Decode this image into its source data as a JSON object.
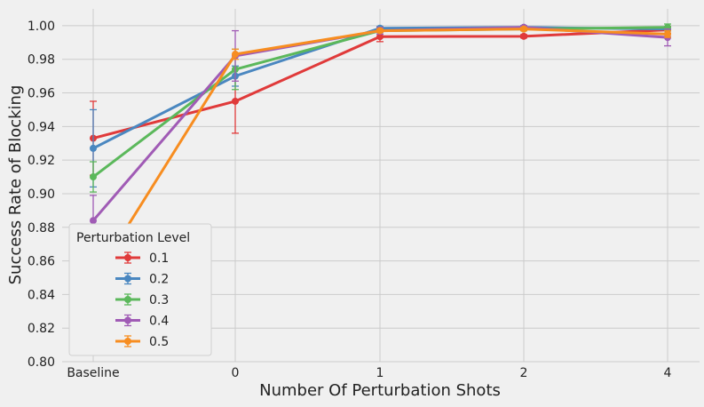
{
  "chart_data": {
    "type": "line",
    "title": "",
    "xlabel": "Number Of Perturbation Shots",
    "ylabel": "Success Rate of Blocking",
    "categories": [
      "Baseline",
      "0",
      "1",
      "2",
      "4"
    ],
    "ylim": [
      0.8,
      1.01
    ],
    "yticks": [
      "0.80",
      "0.82",
      "0.84",
      "0.86",
      "0.88",
      "0.90",
      "0.92",
      "0.94",
      "0.96",
      "0.98",
      "1.00"
    ],
    "grid": true,
    "legend": {
      "title": "Perturbation Level",
      "position": "lower-left"
    },
    "series": [
      {
        "name": "0.1",
        "color": "#e03a3a",
        "values": [
          0.933,
          0.955,
          0.9935,
          0.9937,
          0.9975
        ],
        "err": [
          0.022,
          0.019,
          0.003,
          0.001,
          0.002
        ]
      },
      {
        "name": "0.2",
        "color": "#4a87c0",
        "values": [
          0.927,
          0.97,
          0.9985,
          0.999,
          0.998
        ],
        "err": [
          0.023,
          0.006,
          0.001,
          0.001,
          0.001
        ]
      },
      {
        "name": "0.3",
        "color": "#5bb85b",
        "values": [
          0.91,
          0.974,
          0.997,
          0.998,
          0.999
        ],
        "err": [
          0.009,
          0.012,
          0.002,
          0.001,
          0.002
        ]
      },
      {
        "name": "0.4",
        "color": "#a05bb5",
        "values": [
          0.884,
          0.982,
          0.997,
          0.999,
          0.993
        ],
        "err": [
          0.015,
          0.015,
          0.002,
          0.001,
          0.005
        ]
      },
      {
        "name": "0.5",
        "color": "#f78d20",
        "values": [
          0.848,
          0.983,
          0.997,
          0.998,
          0.995
        ],
        "err": [
          0.028,
          0.003,
          0.001,
          0.001,
          0.002
        ]
      }
    ]
  }
}
